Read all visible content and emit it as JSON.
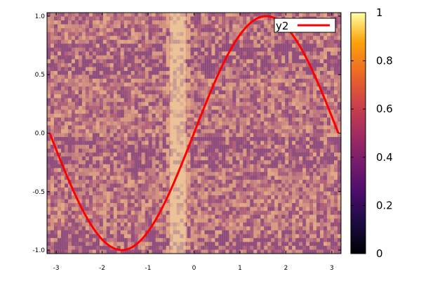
{
  "chart_data": {
    "type": "line",
    "background": "heatmap image (layered landscape photo rendered through a purple-orange-yellow colormap)",
    "x_range": [
      -3.2,
      3.2
    ],
    "y_range": [
      -1.03,
      1.03
    ],
    "x_ticks": [
      -3,
      -2,
      -1,
      0,
      1,
      2,
      3
    ],
    "x_tick_labels": [
      "-3",
      "-2",
      "-1",
      "0",
      "1",
      "2",
      "3"
    ],
    "y_ticks": [
      -1.0,
      -0.5,
      0.0,
      0.5,
      1.0
    ],
    "y_tick_labels": [
      "-1.0",
      "-0.5",
      "0.0",
      "0.5",
      "1.0"
    ],
    "series": [
      {
        "name": "y2",
        "color": "#ff0000",
        "function": "sin(x)",
        "x_start": -3.14159,
        "x_end": 3.14159,
        "points": 160
      }
    ],
    "legend": {
      "position": "top-right",
      "entries": [
        "y2"
      ]
    },
    "colorbar": {
      "range": [
        0,
        1
      ],
      "ticks": [
        0,
        0.2,
        0.4,
        0.6,
        0.8,
        1
      ],
      "tick_labels": [
        "0",
        "0.2",
        "0.4",
        "0.6",
        "0.8",
        "1"
      ],
      "colormap": "inferno"
    },
    "grid": true
  }
}
